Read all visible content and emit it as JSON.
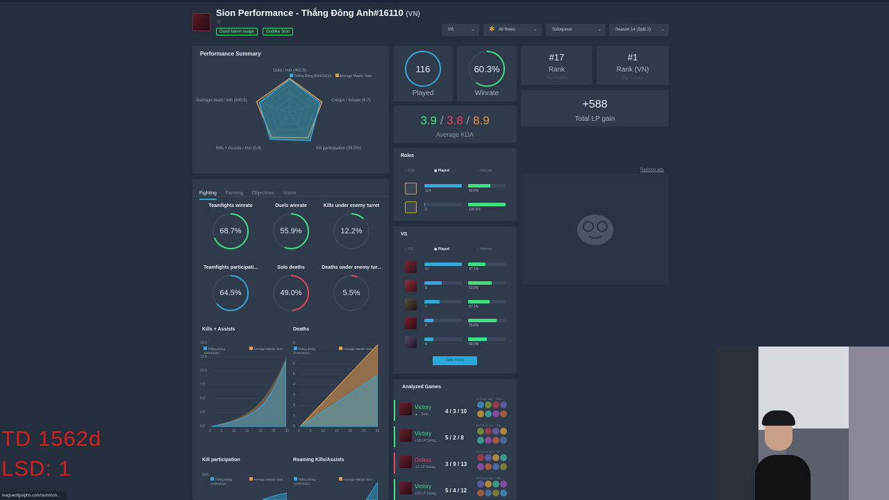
{
  "header": {
    "title": "Sion Performance - Thắng Đông Anh#16110",
    "region": "(VN)",
    "tags": [
      "Good baron usage",
      "Godlike Sion"
    ],
    "filters": [
      {
        "label": "VS"
      },
      {
        "label": "All Roles"
      },
      {
        "label": "Soloqueue"
      },
      {
        "label": "Season 14 (Split 2)"
      }
    ]
  },
  "performance_summary": {
    "title": "Performance Summary",
    "legend_player": "Thắng Đông Anh#16110",
    "legend_avg": "Average Master Sion",
    "axes": [
      "Gold / min (402.6)",
      "Creeps / minute (6.7)",
      "Kill participation (39.2%)",
      "Kills + Assists / min (0.4)",
      "Damage dealt / min (645.5)"
    ]
  },
  "stats": {
    "played_value": "116",
    "played_label": "Played",
    "winrate_value": "60.3%",
    "winrate_label": "Winrate",
    "kda_k": "3.9",
    "kda_d": "3.8",
    "kda_a": "8.9",
    "kda_sep": "/",
    "kda_label": "Average KDA",
    "rank_value": "#17",
    "rank_label": "Rank",
    "rank_top": "Top 0.033%",
    "rank_vn_value": "#1",
    "rank_vn_label": "Rank (VN)",
    "rank_vn_top": "Top 0.024%",
    "lp_value": "+588",
    "lp_label": "Total LP gain"
  },
  "fighting": {
    "tabs": [
      "Fighting",
      "Farming",
      "Objectives",
      "Vision"
    ],
    "gauges": [
      {
        "label": "Teamfights winrate",
        "value": "68.7%",
        "pct": 68.7,
        "color": "#3fe080"
      },
      {
        "label": "Duels winrate",
        "value": "55.9%",
        "pct": 55.9,
        "color": "#3fe080"
      },
      {
        "label": "Kills under enemy turret",
        "value": "12.2%",
        "pct": 12.2,
        "color": "#3fe080"
      },
      {
        "label": "Teamfights participati...",
        "value": "64.5%",
        "pct": 64.5,
        "color": "#35a7d8"
      },
      {
        "label": "Solo deaths",
        "value": "49.0%",
        "pct": 49.0,
        "color": "#e0455a"
      },
      {
        "label": "Deaths under enemy tur...",
        "value": "5.5%",
        "pct": 5.5,
        "color": "#e0455a"
      }
    ]
  },
  "mini_charts": {
    "kills_assists_title": "Kills + Assists",
    "deaths_title": "Deaths",
    "kill_participation_title": "Kill participation",
    "roaming_title": "Roaming Kills/Assists",
    "legend_player": "Thắng Đông Anh#16110",
    "legend_avg": "Average Master Sion",
    "ka_yticks": [
      "15.0",
      "12.5",
      "10.0",
      "7.5",
      "5.0",
      "2.5",
      "0.0"
    ],
    "deaths_yticks": [
      "8",
      "7",
      "6",
      "5",
      "4",
      "3",
      "2",
      "1",
      "0"
    ],
    "xticks": [
      "0",
      "5",
      "10",
      "15",
      "20",
      "25",
      "30"
    ],
    "kp_ytick": "50%"
  },
  "roles": {
    "title": "Roles",
    "col_role": "Role",
    "col_played": "Played",
    "col_winrate": "Winrate",
    "rows": [
      {
        "played": "114",
        "winrate": "59.6%",
        "played_frac": 1.0,
        "win_frac": 0.596
      },
      {
        "played": "2",
        "winrate": "100.0%",
        "played_frac": 0.02,
        "win_frac": 1.0
      }
    ]
  },
  "vs": {
    "title": "VS",
    "col_vs": "VS",
    "col_played": "Played",
    "col_winrate": "Winrate",
    "rows": [
      {
        "played": "17",
        "winrate": "47.1%",
        "played_frac": 1.0,
        "win_frac": 0.471
      },
      {
        "played": "8",
        "winrate": "62.5%",
        "played_frac": 0.47,
        "win_frac": 0.625
      },
      {
        "played": "7",
        "winrate": "57.1%",
        "played_frac": 0.41,
        "win_frac": 0.571
      },
      {
        "played": "4",
        "winrate": "75.0%",
        "played_frac": 0.24,
        "win_frac": 0.75
      },
      {
        "played": "4",
        "winrate": "50.0%",
        "played_frac": 0.24,
        "win_frac": 0.5
      }
    ],
    "see_more": "See more"
  },
  "analyzed_games": {
    "title": "Analyzed Games",
    "games": [
      {
        "result": "Victory",
        "sub": "▲ · Solo...",
        "kda": "4 / 3 / 10",
        "time": "An hour ago - 34m..."
      },
      {
        "result": "Victory",
        "sub": "+19 LP Soloq...",
        "kda": "5 / 2 / 8",
        "time": "10 hours ago - 25..."
      },
      {
        "result": "Defeat",
        "sub": "-21 LP Soloq...",
        "kda": "3 / 9 / 13",
        "time": "10 hours ago - 27..."
      },
      {
        "result": "Victory",
        "sub": "+20 LP Soloq...",
        "kda": "5 / 4 / 12",
        "time": "10 hours ago - 25..."
      }
    ]
  },
  "ads": {
    "remove_ads": "Remove ads"
  },
  "overlay": {
    "line1": "TD 1562d",
    "line2": "LSD: 1",
    "url": "leagueofgraphs.com/summon..."
  },
  "colors": {
    "accent_blue": "#35a7d8",
    "win_green": "#3fe080",
    "loss_red": "#e0455a",
    "avg_orange": "#e39a4a"
  }
}
